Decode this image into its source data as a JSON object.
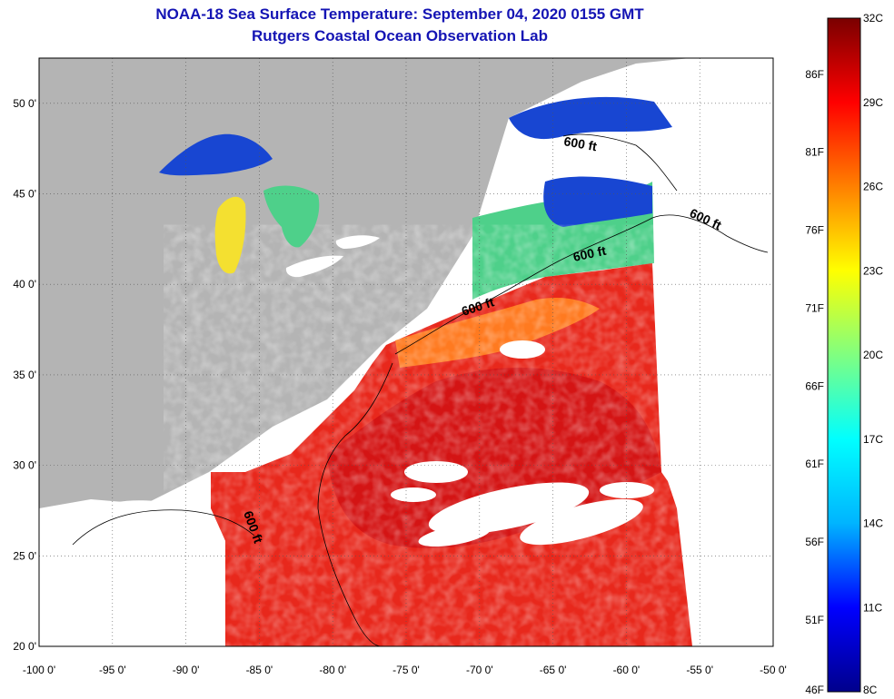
{
  "header": {
    "title": "NOAA-18 Sea Surface Temperature:  September 04, 2020 0155 GMT",
    "subtitle": "Rutgers Coastal Ocean Observation Lab"
  },
  "map": {
    "lon_min": -100,
    "lon_max": -50,
    "lat_min": 20,
    "lat_max": 52.5,
    "lon_ticks": [
      {
        "value": -100,
        "label": "-100 0'"
      },
      {
        "value": -95,
        "label": "-95 0'"
      },
      {
        "value": -90,
        "label": "-90 0'"
      },
      {
        "value": -85,
        "label": "-85 0'"
      },
      {
        "value": -80,
        "label": "-80 0'"
      },
      {
        "value": -75,
        "label": "-75 0'"
      },
      {
        "value": -70,
        "label": "-70 0'"
      },
      {
        "value": -65,
        "label": "-65 0'"
      },
      {
        "value": -60,
        "label": "-60 0'"
      },
      {
        "value": -55,
        "label": "-55 0'"
      },
      {
        "value": -50,
        "label": "-50 0'"
      }
    ],
    "lat_ticks": [
      {
        "value": 50,
        "label": "50 0'"
      },
      {
        "value": 45,
        "label": "45 0'"
      },
      {
        "value": 40,
        "label": "40 0'"
      },
      {
        "value": 35,
        "label": "35 0'"
      },
      {
        "value": 30,
        "label": "30 0'"
      },
      {
        "value": 25,
        "label": "25 0'"
      },
      {
        "value": 20,
        "label": "20 0'"
      }
    ],
    "contour_label": "600 ft",
    "colors": {
      "land": "#b4b4b4",
      "no_data": "#ffffff",
      "warm": "#e8281c",
      "hot": "#d41414",
      "orange": "#ff7a20",
      "yellow": "#f4e030",
      "green": "#4ed08a",
      "cyan": "#2ab4e6",
      "blue": "#1846d2"
    }
  },
  "colorbar": {
    "min_c": 8,
    "max_c": 32,
    "celsius_labels": [
      "32C",
      "29C",
      "26C",
      "23C",
      "20C",
      "17C",
      "14C",
      "11C",
      "8C"
    ],
    "fahrenheit_labels": [
      "86F",
      "81F",
      "76F",
      "71F",
      "66F",
      "61F",
      "56F",
      "51F",
      "46F"
    ],
    "fahrenheit_values": [
      86,
      81,
      76,
      71,
      66,
      61,
      56,
      51,
      46
    ],
    "stops": [
      "#00008c",
      "#0000ff",
      "#00b4ff",
      "#00ffff",
      "#80ff80",
      "#ffff00",
      "#ff8000",
      "#ff0000",
      "#7a0000"
    ]
  }
}
